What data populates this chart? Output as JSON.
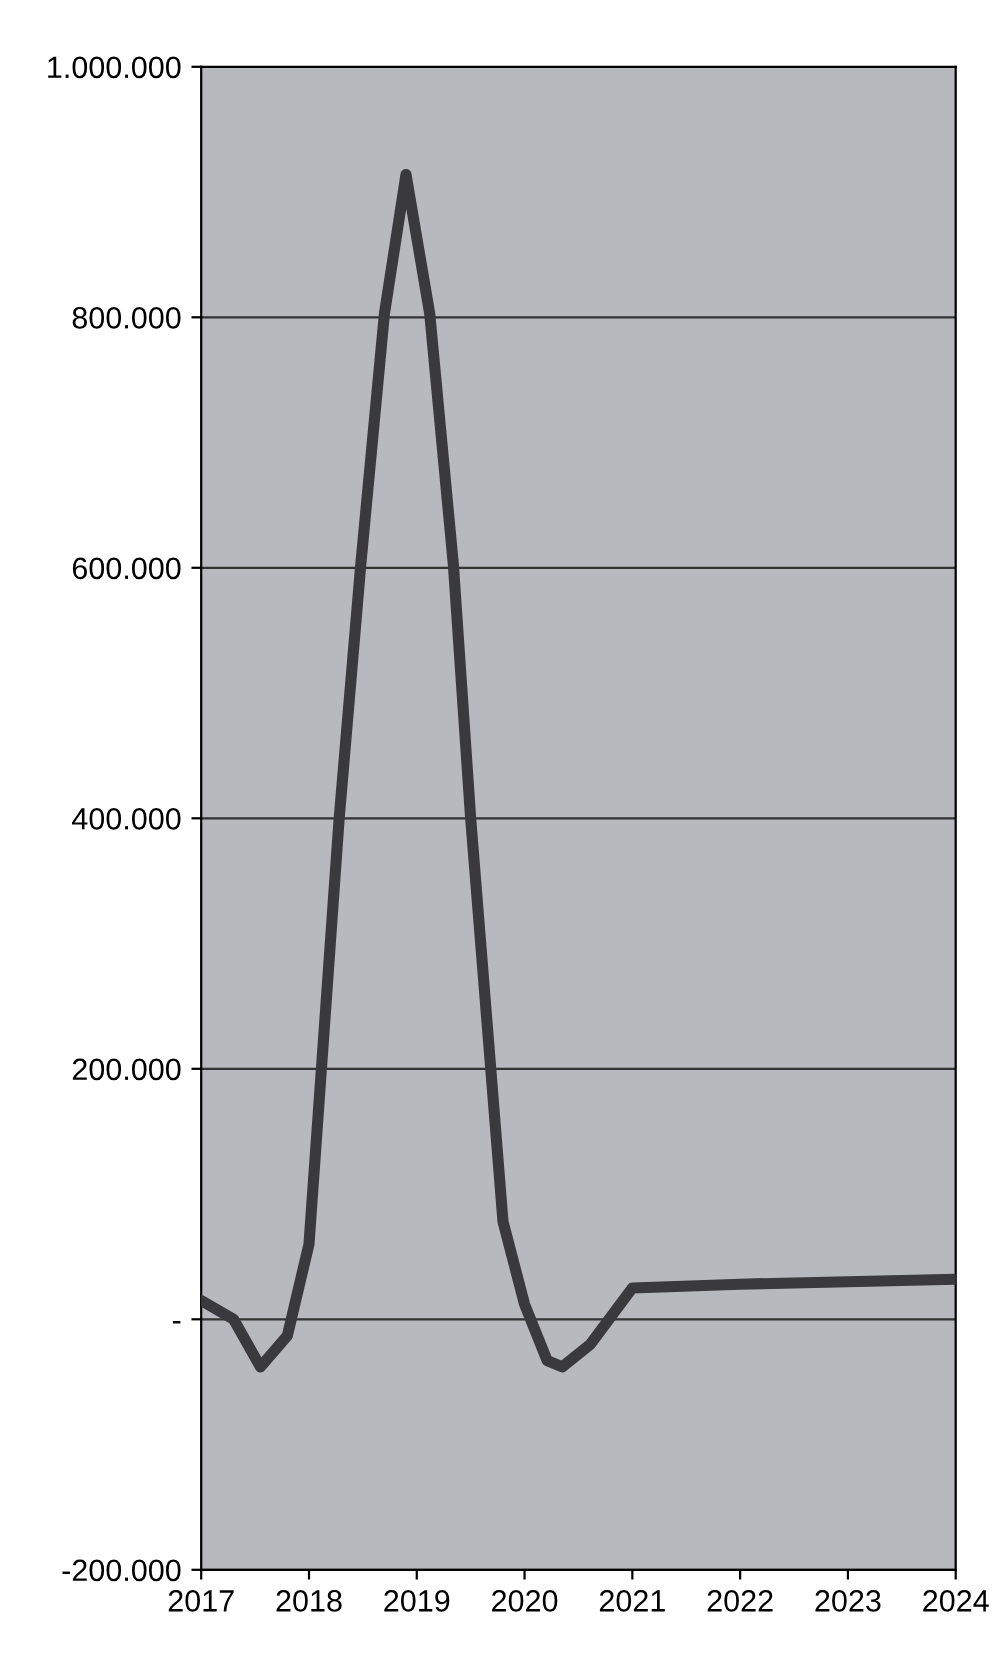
{
  "chart_data": {
    "type": "line",
    "x": [
      2017.0,
      2017.3,
      2017.55,
      2017.8,
      2018.0,
      2018.28,
      2018.48,
      2018.7,
      2018.9,
      2019.12,
      2019.34,
      2019.5,
      2019.8,
      2020.0,
      2020.21,
      2020.35,
      2020.61,
      2021.0,
      2022.0,
      2023.0,
      2024.0
    ],
    "series": [
      {
        "color": "#3a3a3e",
        "values": [
          15000,
          0,
          -38000,
          -13000,
          60000,
          400000,
          602000,
          803000,
          914000,
          803000,
          602000,
          400000,
          78000,
          12000,
          -33000,
          -38000,
          -20000,
          25000,
          28000,
          30000,
          32000
        ]
      }
    ],
    "xlim": [
      2017,
      2024
    ],
    "xticks": [
      2017,
      2018,
      2019,
      2020,
      2021,
      2022,
      2023,
      2024
    ],
    "ylim": [
      -200000,
      1000000
    ],
    "yticks": [
      {
        "value": -200000,
        "label": "-200.000"
      },
      {
        "value": 0,
        "label": "-"
      },
      {
        "value": 200000,
        "label": "200.000"
      },
      {
        "value": 400000,
        "label": "400.000"
      },
      {
        "value": 600000,
        "label": "600.000"
      },
      {
        "value": 800000,
        "label": "800.000"
      },
      {
        "value": 1000000,
        "label": "1.000.000"
      }
    ],
    "grid": "y",
    "marker": "none",
    "line_style": "solid"
  }
}
